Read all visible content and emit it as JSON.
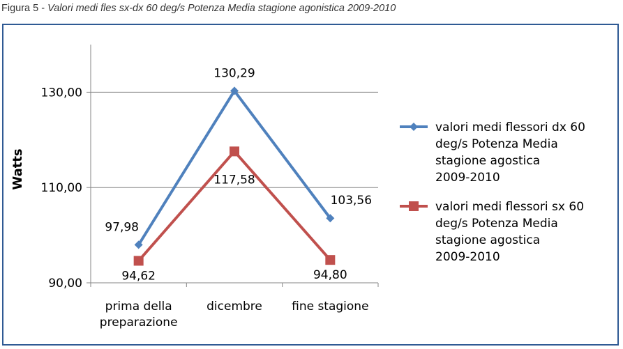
{
  "caption": {
    "prefix": "Figura 5 - ",
    "title": "Valori medi fles sx-dx 60 deg/s Potenza Media stagione agonistica 2009-2010"
  },
  "chart_data": {
    "type": "line",
    "ylabel": "Watts",
    "xlabel": "",
    "ylim": [
      90,
      140
    ],
    "yticks": [
      90,
      110,
      130
    ],
    "ytick_labels": [
      "90,00",
      "110,00",
      "130,00"
    ],
    "grid": true,
    "legend_position": "right",
    "categories": [
      [
        "prima della",
        "preparazione"
      ],
      [
        "dicembre"
      ],
      [
        "fine stagione"
      ]
    ],
    "series": [
      {
        "name_lines": [
          "valori medi flessori dx 60",
          "deg/s Potenza Media",
          "stagione agostica",
          "2009-2010"
        ],
        "values": [
          97.98,
          130.29,
          103.56
        ],
        "labels": [
          "97,98",
          "130,29",
          "103,56"
        ],
        "color": "#4f81bd",
        "marker": "diamond",
        "label_position": "above"
      },
      {
        "name_lines": [
          "valori medi flessori sx 60",
          "deg/s Potenza Media",
          "stagione agostica",
          "2009-2010"
        ],
        "values": [
          94.62,
          117.58,
          94.8
        ],
        "labels": [
          "94,62",
          "117,58",
          "94,80"
        ],
        "color": "#c0504d",
        "marker": "square",
        "label_position": "below"
      }
    ]
  }
}
